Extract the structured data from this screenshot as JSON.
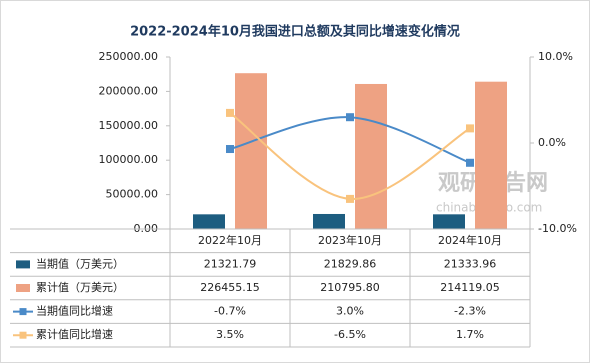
{
  "chart_data": {
    "type": "bar-line-table",
    "title": "2022-2024年10月我国进口总额及其同比增速变化情况",
    "categories": [
      "2022年10月",
      "2023年10月",
      "2024年10月"
    ],
    "series": [
      {
        "name": "当期值（万美元）",
        "kind": "bar",
        "color": "#1d5d80",
        "values": [
          21321.79,
          21829.86,
          21333.96
        ],
        "value_labels": [
          "21321.79",
          "21829.86",
          "21333.96"
        ]
      },
      {
        "name": "累计值（万美元）",
        "kind": "bar",
        "color": "#eea283",
        "values": [
          226455.15,
          210795.8,
          214119.05
        ],
        "value_labels": [
          "226455.15",
          "210795.80",
          "214119.05"
        ]
      },
      {
        "name": "当期值同比增速",
        "kind": "line",
        "axis": "y2",
        "color": "#4a8ac8",
        "values": [
          -0.7,
          3.0,
          -2.3
        ],
        "value_labels": [
          "-0.7%",
          "3.0%",
          "-2.3%"
        ]
      },
      {
        "name": "累计值同比增速",
        "kind": "line",
        "axis": "y2",
        "color": "#f9c37d",
        "values": [
          3.5,
          -6.5,
          1.7
        ],
        "value_labels": [
          "3.5%",
          "-6.5%",
          "1.7%"
        ]
      }
    ],
    "ylim": [
      0,
      250000
    ],
    "yticks": [
      {
        "value": 0,
        "label": "0.00"
      },
      {
        "value": 50000,
        "label": "50000.00"
      },
      {
        "value": 100000,
        "label": "100000.00"
      },
      {
        "value": 150000,
        "label": "150000.00"
      },
      {
        "value": 200000,
        "label": "200000.00"
      },
      {
        "value": 250000,
        "label": "250000.00"
      }
    ],
    "y2lim": [
      -10,
      10
    ],
    "y2ticks": [
      {
        "value": -10,
        "label": "-10.0%"
      },
      {
        "value": 0,
        "label": "0.0%"
      },
      {
        "value": 10,
        "label": "10.0%"
      }
    ],
    "watermark": [
      "观研报告网",
      "chinabaogao.com"
    ]
  }
}
